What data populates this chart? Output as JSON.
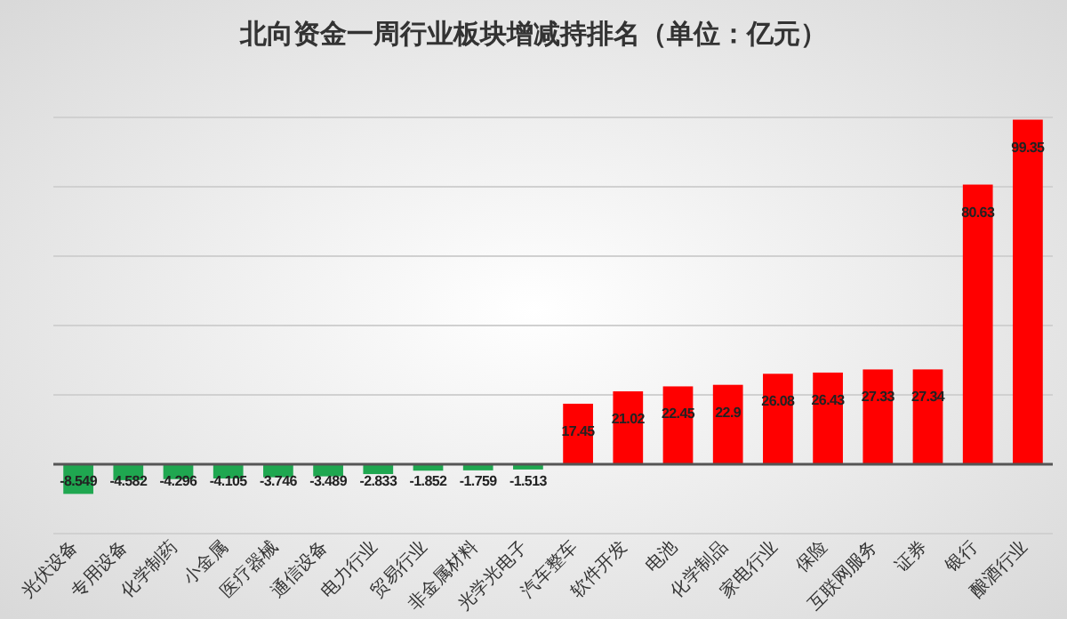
{
  "chart_data": {
    "type": "bar",
    "title": "北向资金一周行业板块增减持排名（单位：亿元）",
    "categories": [
      "光伏设备",
      "专用设备",
      "化学制药",
      "小金属",
      "医疗器械",
      "通信设备",
      "电力行业",
      "贸易行业",
      "非金属材料",
      "光学光电子",
      "汽车整车",
      "软件开发",
      "电池",
      "化学制品",
      "家电行业",
      "保险",
      "互联网服务",
      "证券",
      "银行",
      "酿酒行业"
    ],
    "values": [
      -8.549,
      -4.582,
      -4.296,
      -4.105,
      -3.746,
      -3.489,
      -2.833,
      -1.852,
      -1.759,
      -1.513,
      17.45,
      21.02,
      22.45,
      22.9,
      26.08,
      26.43,
      27.33,
      27.34,
      80.63,
      99.35
    ],
    "colors": [
      "#1fa750",
      "#1fa750",
      "#1fa750",
      "#1fa750",
      "#1fa750",
      "#1fa750",
      "#1fa750",
      "#1fa750",
      "#1fa750",
      "#1fa750",
      "#ff0000",
      "#ff0000",
      "#ff0000",
      "#ff0000",
      "#ff0000",
      "#ff0000",
      "#ff0000",
      "#ff0000",
      "#ff0000",
      "#ff0000"
    ],
    "data_labels": true,
    "ylim": [
      -20,
      100
    ],
    "yticks": [
      {
        "value": -20,
        "label": null
      },
      {
        "value": 0,
        "label": null
      },
      {
        "value": 20,
        "label": null
      },
      {
        "value": 40,
        "label": null
      },
      {
        "value": 60,
        "label": null
      },
      {
        "value": 80,
        "label": null
      },
      {
        "value": 100,
        "label": null
      }
    ],
    "tick_labels": "x",
    "grid": "y"
  }
}
